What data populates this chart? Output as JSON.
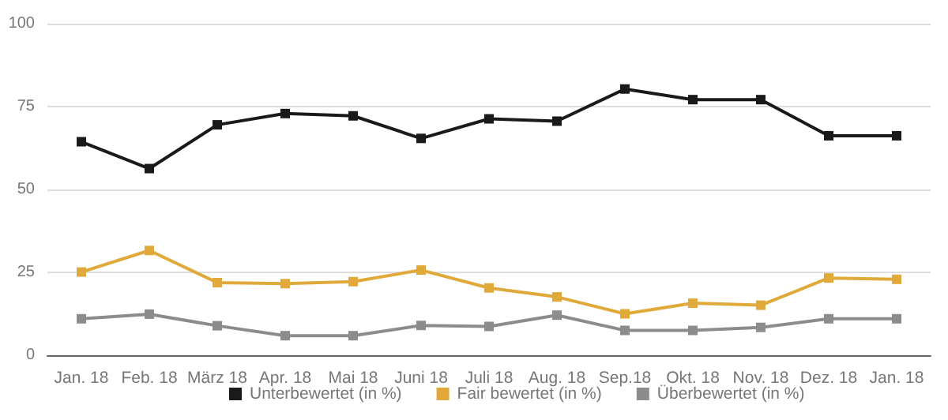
{
  "chart_data": {
    "type": "line",
    "categories": [
      "Jan. 18",
      "Feb. 18",
      "März 18",
      "Apr. 18",
      "Mai 18",
      "Juni 18",
      "Juli 18",
      "Aug. 18",
      "Sep.18",
      "Okt. 18",
      "Nov. 18",
      "Dez. 18",
      "Jan. 18"
    ],
    "series": [
      {
        "name": "Unterbewertet (in %)",
        "color": "#1a1a1a",
        "values": [
          64.4,
          56.3,
          69.5,
          72.9,
          72.2,
          65.4,
          71.3,
          70.6,
          80.3,
          77.1,
          77.1,
          66.2,
          66.2
        ]
      },
      {
        "name": "Fair bewertet (in %)",
        "color": "#e0a93a",
        "values": [
          25.1,
          31.6,
          21.9,
          21.6,
          22.2,
          25.7,
          20.3,
          17.6,
          12.5,
          15.7,
          15.1,
          23.3,
          22.9
        ]
      },
      {
        "name": "Überbewertet (in %)",
        "color": "#8c8c8c",
        "values": [
          11,
          12.4,
          8.9,
          5.9,
          5.9,
          9,
          8.7,
          12.1,
          7.5,
          7.5,
          8.4,
          11,
          11
        ]
      }
    ],
    "ylim": [
      0,
      100
    ],
    "yticks": [
      0,
      25,
      50,
      75,
      100
    ],
    "grid": "y",
    "legend": "bottom",
    "marker": "square",
    "line_style": "solid"
  }
}
